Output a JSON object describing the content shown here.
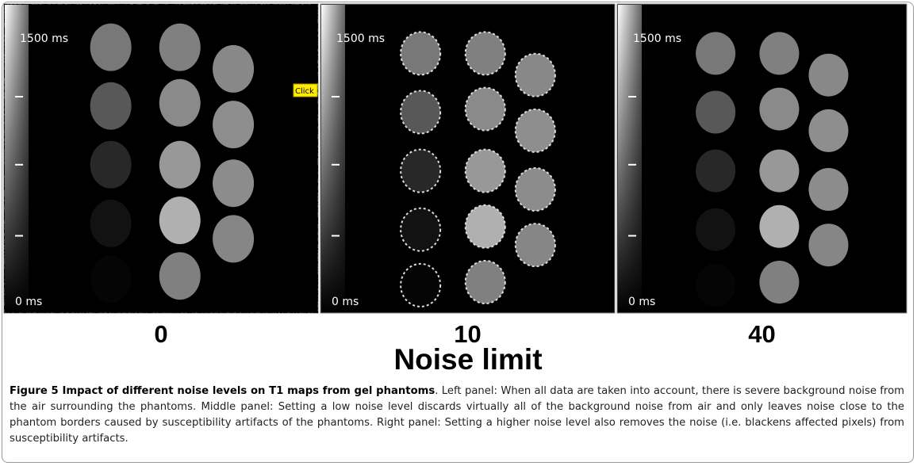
{
  "figure": {
    "panels": [
      {
        "top_label": "1500 ms",
        "bottom_label": "0 ms",
        "noise_limit": "0"
      },
      {
        "top_label": "1500 ms",
        "bottom_label": "0 ms",
        "noise_limit": "10"
      },
      {
        "top_label": "1500 ms",
        "bottom_label": "0 ms",
        "noise_limit": "40"
      }
    ],
    "tooltip": "Click",
    "axis_title": "Noise limit",
    "caption": {
      "title": "Figure 5 Impact of different noise levels on T1 maps from gel phantoms",
      "text": ". Left panel: When all data are taken into account, there is severe background noise from the air surrounding the phantoms. Middle panel: Setting a low noise level discards virtually all of the background noise from air and only leaves noise close to the phantom borders caused by susceptibility artifacts of the phantoms. Right panel: Setting a higher noise level also removes the noise (i.e. blackens affected pixels) from susceptibility artifacts."
    }
  }
}
